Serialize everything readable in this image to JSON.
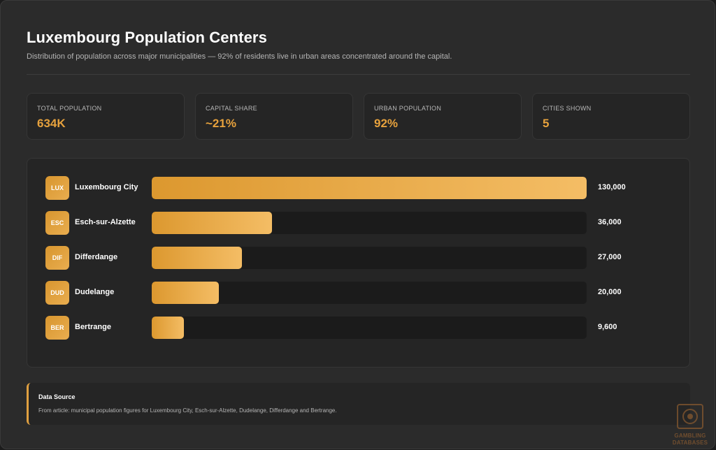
{
  "header": {
    "title": "Luxembourg Population Centers",
    "subtitle": "Distribution of population across major municipalities — 92% of residents live in urban areas concentrated around the capital."
  },
  "stats": [
    {
      "label": "TOTAL POPULATION",
      "value": "634K"
    },
    {
      "label": "CAPITAL SHARE",
      "value": "~21%"
    },
    {
      "label": "URBAN POPULATION",
      "value": "92%"
    },
    {
      "label": "CITIES SHOWN",
      "value": "5"
    }
  ],
  "chart_data": {
    "type": "bar",
    "orientation": "horizontal",
    "categories": [
      "Luxembourg City",
      "Esch-sur-Alzette",
      "Differdange",
      "Dudelange",
      "Bertrange"
    ],
    "badges": [
      "LUX",
      "ESC",
      "DIF",
      "DUD",
      "BER"
    ],
    "values": [
      130000,
      36000,
      27000,
      20000,
      9600
    ],
    "value_labels": [
      "130,000",
      "36,000",
      "27,000",
      "20,000",
      "9,600"
    ],
    "xlim": [
      0,
      130000
    ],
    "grid": false,
    "legend": "none"
  },
  "source": {
    "title": "Data Source",
    "text": "From article: municipal population figures for Luxembourg City, Esch-sur-Alzette, Dudelange, Differdange and Bertrange."
  },
  "watermark": {
    "line1": "GAMBLING",
    "line2": "DATABASES"
  },
  "colors": {
    "accent": "#e7a23d",
    "background": "#2b2b2b",
    "panel": "#252525",
    "track": "#1b1b1b"
  }
}
